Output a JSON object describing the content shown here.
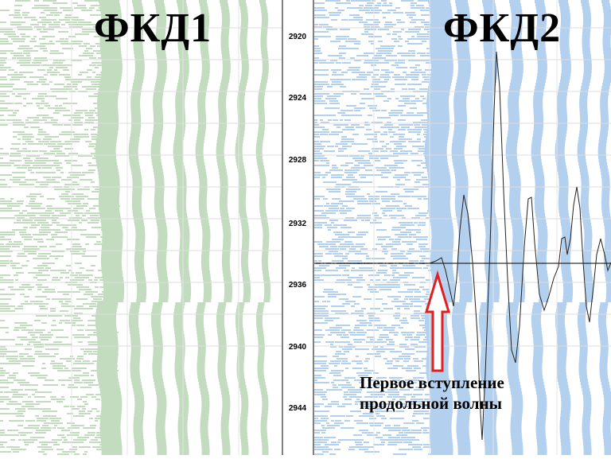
{
  "panels": [
    {
      "title": "ФКД1",
      "color": "#c3dcc0"
    },
    {
      "title": "ФКД2",
      "color": "#b3d0ee"
    }
  ],
  "depth_scale": {
    "ticks": [
      "2920",
      "2924",
      "2928",
      "2932",
      "2936",
      "2940",
      "2944"
    ]
  },
  "annotation": {
    "line1": "Первое вступление",
    "line2": "продольной волны",
    "arrow_color": "#e0201e"
  }
}
